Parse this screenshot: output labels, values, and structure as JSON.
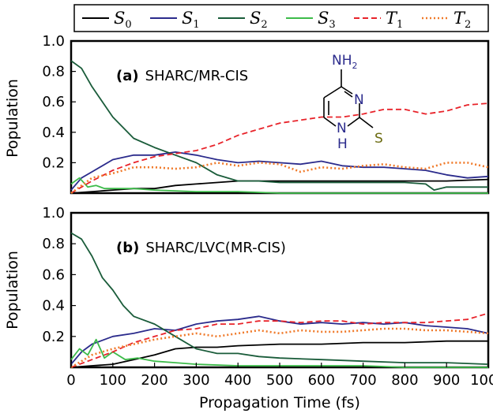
{
  "chart_data": [
    {
      "type": "line",
      "panel_title": {
        "label": "(a)",
        "text": "SHARC/MR-CIS"
      },
      "ylabel": "Population",
      "xlabel": "",
      "xlim": [
        0,
        1000
      ],
      "ylim": [
        0,
        1.0
      ],
      "yticks": [
        "0.2",
        "0.4",
        "0.6",
        "0.8",
        "1.0"
      ],
      "yticks_values": [
        0.2,
        0.4,
        0.6,
        0.8,
        1.0
      ],
      "xticks": [],
      "series": [
        {
          "name": "S0",
          "color": "#000000",
          "style": "solid",
          "x": [
            0,
            50,
            100,
            150,
            200,
            250,
            300,
            350,
            400,
            450,
            500,
            600,
            700,
            800,
            900,
            1000
          ],
          "y": [
            0,
            0.01,
            0.02,
            0.03,
            0.03,
            0.05,
            0.06,
            0.07,
            0.08,
            0.08,
            0.08,
            0.08,
            0.08,
            0.08,
            0.08,
            0.09
          ]
        },
        {
          "name": "S1",
          "color": "#2b2b8c",
          "style": "solid",
          "x": [
            0,
            25,
            50,
            100,
            150,
            200,
            250,
            300,
            350,
            400,
            450,
            500,
            550,
            600,
            650,
            700,
            750,
            800,
            850,
            900,
            950,
            1000
          ],
          "y": [
            0.02,
            0.1,
            0.14,
            0.22,
            0.25,
            0.25,
            0.27,
            0.25,
            0.22,
            0.2,
            0.21,
            0.2,
            0.19,
            0.21,
            0.18,
            0.17,
            0.17,
            0.16,
            0.15,
            0.12,
            0.1,
            0.11
          ]
        },
        {
          "name": "S2",
          "color": "#1a5c3a",
          "style": "solid",
          "x": [
            0,
            25,
            50,
            100,
            150,
            200,
            250,
            300,
            350,
            400,
            450,
            500,
            600,
            700,
            800,
            850,
            870,
            900,
            1000
          ],
          "y": [
            0.87,
            0.82,
            0.7,
            0.5,
            0.36,
            0.3,
            0.25,
            0.2,
            0.12,
            0.08,
            0.08,
            0.07,
            0.07,
            0.07,
            0.07,
            0.06,
            0.02,
            0.04,
            0.04
          ]
        },
        {
          "name": "S3",
          "color": "#3dbb4a",
          "style": "solid",
          "x": [
            0,
            20,
            40,
            60,
            80,
            100,
            150,
            200,
            300,
            400,
            500,
            600,
            700,
            800,
            900,
            1000
          ],
          "y": [
            0.06,
            0.1,
            0.04,
            0.05,
            0.03,
            0.03,
            0.03,
            0.02,
            0.01,
            0.01,
            0.0,
            0.0,
            0.0,
            0.0,
            0.0,
            0.0
          ]
        },
        {
          "name": "T1",
          "color": "#e8232a",
          "style": "dashed",
          "x": [
            0,
            50,
            100,
            150,
            200,
            250,
            300,
            350,
            400,
            450,
            500,
            550,
            600,
            650,
            700,
            750,
            800,
            850,
            900,
            950,
            1000
          ],
          "y": [
            0,
            0.08,
            0.15,
            0.2,
            0.24,
            0.26,
            0.28,
            0.32,
            0.38,
            0.42,
            0.46,
            0.48,
            0.5,
            0.5,
            0.52,
            0.55,
            0.55,
            0.52,
            0.54,
            0.58,
            0.59
          ]
        },
        {
          "name": "T2",
          "color": "#f07a2a",
          "style": "dotted",
          "x": [
            0,
            50,
            100,
            150,
            200,
            250,
            300,
            350,
            400,
            450,
            500,
            550,
            600,
            650,
            700,
            750,
            800,
            850,
            900,
            950,
            1000
          ],
          "y": [
            0,
            0.1,
            0.13,
            0.17,
            0.17,
            0.16,
            0.17,
            0.2,
            0.18,
            0.2,
            0.19,
            0.14,
            0.17,
            0.16,
            0.18,
            0.19,
            0.17,
            0.16,
            0.2,
            0.2,
            0.17
          ]
        }
      ]
    },
    {
      "type": "line",
      "panel_title": {
        "label": "(b)",
        "text": "SHARC/LVC(MR-CIS)"
      },
      "ylabel": "Population",
      "xlabel": "Propagation Time (fs)",
      "xlim": [
        0,
        1000
      ],
      "ylim": [
        0,
        1.0
      ],
      "yticks": [
        "0.2",
        "0.4",
        "0.6",
        "0.8",
        "1.0"
      ],
      "yticks_values": [
        0.2,
        0.4,
        0.6,
        0.8,
        1.0
      ],
      "xticks": [
        "0",
        "100",
        "200",
        "300",
        "400",
        "500",
        "600",
        "700",
        "800",
        "900",
        "1000"
      ],
      "xticks_values": [
        0,
        100,
        200,
        300,
        400,
        500,
        600,
        700,
        800,
        900,
        1000
      ],
      "series": [
        {
          "name": "S0",
          "color": "#000000",
          "style": "solid",
          "x": [
            0,
            50,
            100,
            150,
            200,
            250,
            300,
            350,
            400,
            500,
            600,
            700,
            800,
            900,
            1000
          ],
          "y": [
            0,
            0.01,
            0.02,
            0.05,
            0.08,
            0.12,
            0.13,
            0.13,
            0.14,
            0.15,
            0.15,
            0.16,
            0.16,
            0.17,
            0.17
          ]
        },
        {
          "name": "S1",
          "color": "#2b2b8c",
          "style": "solid",
          "x": [
            0,
            25,
            50,
            100,
            150,
            200,
            250,
            300,
            350,
            400,
            450,
            500,
            550,
            600,
            650,
            700,
            750,
            800,
            850,
            900,
            950,
            1000
          ],
          "y": [
            0.02,
            0.1,
            0.15,
            0.2,
            0.22,
            0.25,
            0.24,
            0.28,
            0.3,
            0.31,
            0.33,
            0.3,
            0.28,
            0.29,
            0.28,
            0.29,
            0.28,
            0.29,
            0.27,
            0.26,
            0.25,
            0.22
          ]
        },
        {
          "name": "S2",
          "color": "#1a5c3a",
          "style": "solid",
          "x": [
            0,
            25,
            50,
            75,
            100,
            125,
            150,
            200,
            250,
            300,
            350,
            400,
            450,
            500,
            600,
            700,
            800,
            900,
            1000
          ],
          "y": [
            0.87,
            0.83,
            0.72,
            0.58,
            0.5,
            0.4,
            0.33,
            0.28,
            0.2,
            0.12,
            0.09,
            0.09,
            0.07,
            0.06,
            0.05,
            0.04,
            0.03,
            0.03,
            0.02
          ]
        },
        {
          "name": "S3",
          "color": "#3dbb4a",
          "style": "solid",
          "x": [
            0,
            20,
            40,
            60,
            80,
            100,
            130,
            160,
            200,
            250,
            300,
            400,
            500,
            600,
            700,
            800,
            900,
            1000
          ],
          "y": [
            0.05,
            0.12,
            0.08,
            0.18,
            0.06,
            0.1,
            0.05,
            0.06,
            0.04,
            0.03,
            0.02,
            0.01,
            0.01,
            0.01,
            0.01,
            0.0,
            0.0,
            0.0
          ]
        },
        {
          "name": "T1",
          "color": "#e8232a",
          "style": "dashed",
          "x": [
            0,
            50,
            100,
            150,
            200,
            250,
            300,
            350,
            400,
            450,
            500,
            550,
            600,
            650,
            700,
            750,
            800,
            850,
            900,
            950,
            1000
          ],
          "y": [
            0,
            0.05,
            0.1,
            0.16,
            0.2,
            0.24,
            0.25,
            0.28,
            0.28,
            0.3,
            0.3,
            0.29,
            0.3,
            0.3,
            0.28,
            0.29,
            0.29,
            0.29,
            0.3,
            0.31,
            0.35
          ]
        },
        {
          "name": "T2",
          "color": "#f07a2a",
          "style": "dotted",
          "x": [
            0,
            50,
            100,
            150,
            200,
            250,
            300,
            350,
            400,
            450,
            500,
            550,
            600,
            650,
            700,
            750,
            800,
            850,
            900,
            950,
            1000
          ],
          "y": [
            0,
            0.08,
            0.12,
            0.15,
            0.18,
            0.2,
            0.22,
            0.2,
            0.22,
            0.24,
            0.22,
            0.24,
            0.23,
            0.23,
            0.24,
            0.25,
            0.25,
            0.24,
            0.24,
            0.23,
            0.22
          ]
        }
      ]
    }
  ],
  "legend": {
    "placement": "top",
    "entries": [
      {
        "main": "S",
        "sub": "0",
        "color": "#000000",
        "style": "solid"
      },
      {
        "main": "S",
        "sub": "1",
        "color": "#2b2b8c",
        "style": "solid"
      },
      {
        "main": "S",
        "sub": "2",
        "color": "#1a5c3a",
        "style": "solid"
      },
      {
        "main": "S",
        "sub": "3",
        "color": "#3dbb4a",
        "style": "solid"
      },
      {
        "main": "T",
        "sub": "1",
        "color": "#e8232a",
        "style": "dashed"
      },
      {
        "main": "T",
        "sub": "2",
        "color": "#f07a2a",
        "style": "dotted"
      }
    ]
  },
  "molecule": {
    "amine_label": "NH",
    "amine_sub": "2",
    "ring_n_label": "N",
    "nh_n_label": "N",
    "nh_h_label": "H",
    "thio_label": "S"
  }
}
